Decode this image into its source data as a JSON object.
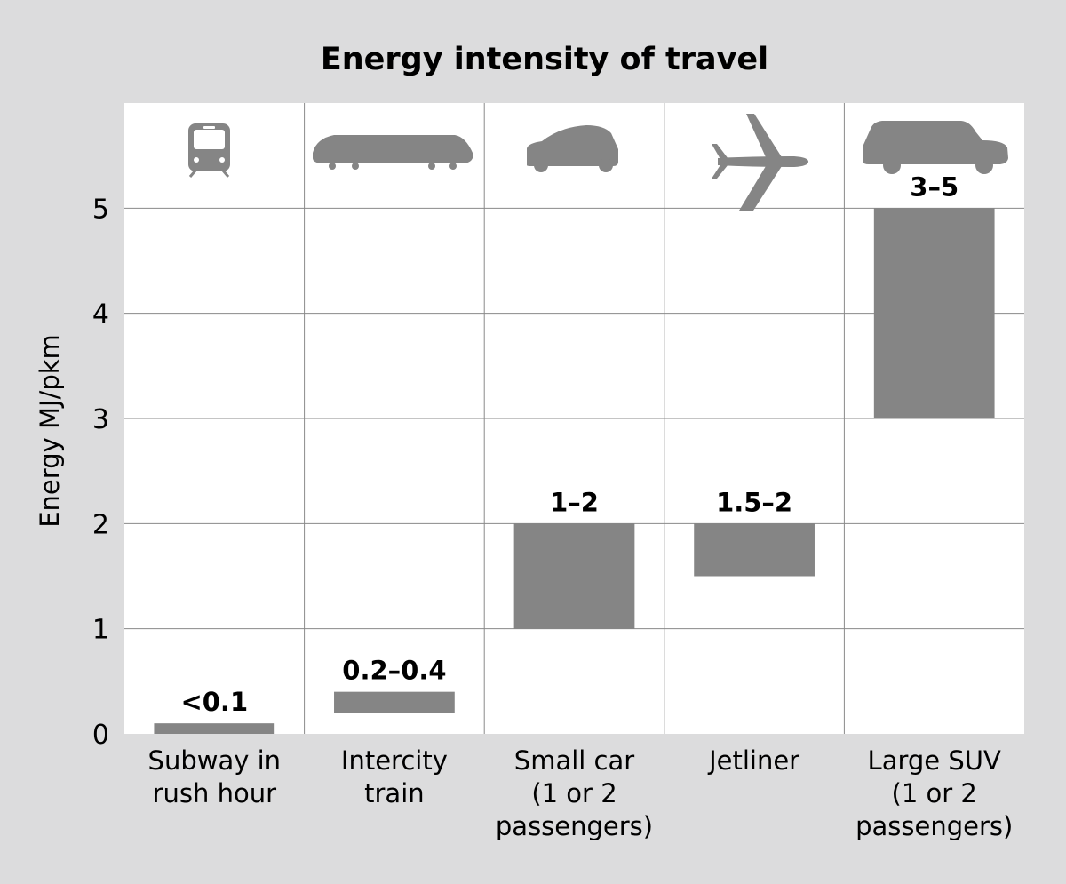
{
  "chart_data": {
    "type": "bar",
    "title": "Energy intensity of travel",
    "ylabel": "Energy MJ/pkm",
    "xlabel": "",
    "ylim": [
      0,
      6
    ],
    "yticks": [
      0,
      1,
      2,
      3,
      4,
      5
    ],
    "grid": true,
    "bar_color": "#858585",
    "categories": [
      {
        "lines": [
          "Subway in",
          "rush hour"
        ],
        "icon": "subway-train-icon",
        "range": [
          0,
          0.1
        ],
        "label": "<0.1"
      },
      {
        "lines": [
          "Intercity",
          "train"
        ],
        "icon": "intercity-train-icon",
        "range": [
          0.2,
          0.4
        ],
        "label": "0.2–0.4"
      },
      {
        "lines": [
          "Small car",
          "(1 or 2",
          "passengers)"
        ],
        "icon": "small-car-icon",
        "range": [
          1,
          2
        ],
        "label": "1–2"
      },
      {
        "lines": [
          "Jetliner"
        ],
        "icon": "jetliner-icon",
        "range": [
          1.5,
          2
        ],
        "label": "1.5–2"
      },
      {
        "lines": [
          "Large SUV",
          "(1 or 2",
          "passengers)"
        ],
        "icon": "large-suv-icon",
        "range": [
          3,
          5
        ],
        "label": "3–5"
      }
    ]
  }
}
